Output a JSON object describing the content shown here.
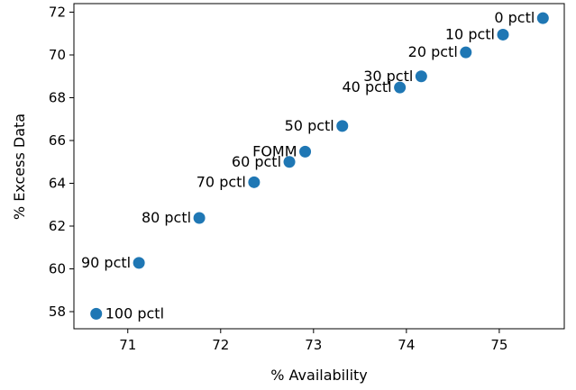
{
  "chart_data": {
    "type": "scatter",
    "title": "",
    "xlabel": "% Availability",
    "ylabel": "% Excess Data",
    "xlim": [
      70.42,
      75.7
    ],
    "ylim": [
      57.2,
      72.4
    ],
    "xticks": [
      71,
      72,
      73,
      74,
      75
    ],
    "yticks": [
      58,
      60,
      62,
      64,
      66,
      68,
      70,
      72
    ],
    "grid": false,
    "color": "#1f77b4",
    "points": [
      {
        "label": "0 pctl",
        "x": 75.47,
        "y": 71.72,
        "anchor": "left"
      },
      {
        "label": "10 pctl",
        "x": 75.04,
        "y": 70.95,
        "anchor": "left"
      },
      {
        "label": "20 pctl",
        "x": 74.64,
        "y": 70.12,
        "anchor": "left"
      },
      {
        "label": "30 pctl",
        "x": 74.16,
        "y": 69.0,
        "anchor": "left"
      },
      {
        "label": "40 pctl",
        "x": 73.93,
        "y": 68.48,
        "anchor": "left"
      },
      {
        "label": "50 pctl",
        "x": 73.31,
        "y": 66.68,
        "anchor": "left"
      },
      {
        "label": "FOMM",
        "x": 72.91,
        "y": 65.48,
        "anchor": "left"
      },
      {
        "label": "60 pctl",
        "x": 72.74,
        "y": 65.0,
        "anchor": "left"
      },
      {
        "label": "70 pctl",
        "x": 72.36,
        "y": 64.05,
        "anchor": "left"
      },
      {
        "label": "80 pctl",
        "x": 71.77,
        "y": 62.38,
        "anchor": "left"
      },
      {
        "label": "90 pctl",
        "x": 71.12,
        "y": 60.28,
        "anchor": "left"
      },
      {
        "label": "100 pctl",
        "x": 70.66,
        "y": 57.9,
        "anchor": "right"
      }
    ]
  }
}
